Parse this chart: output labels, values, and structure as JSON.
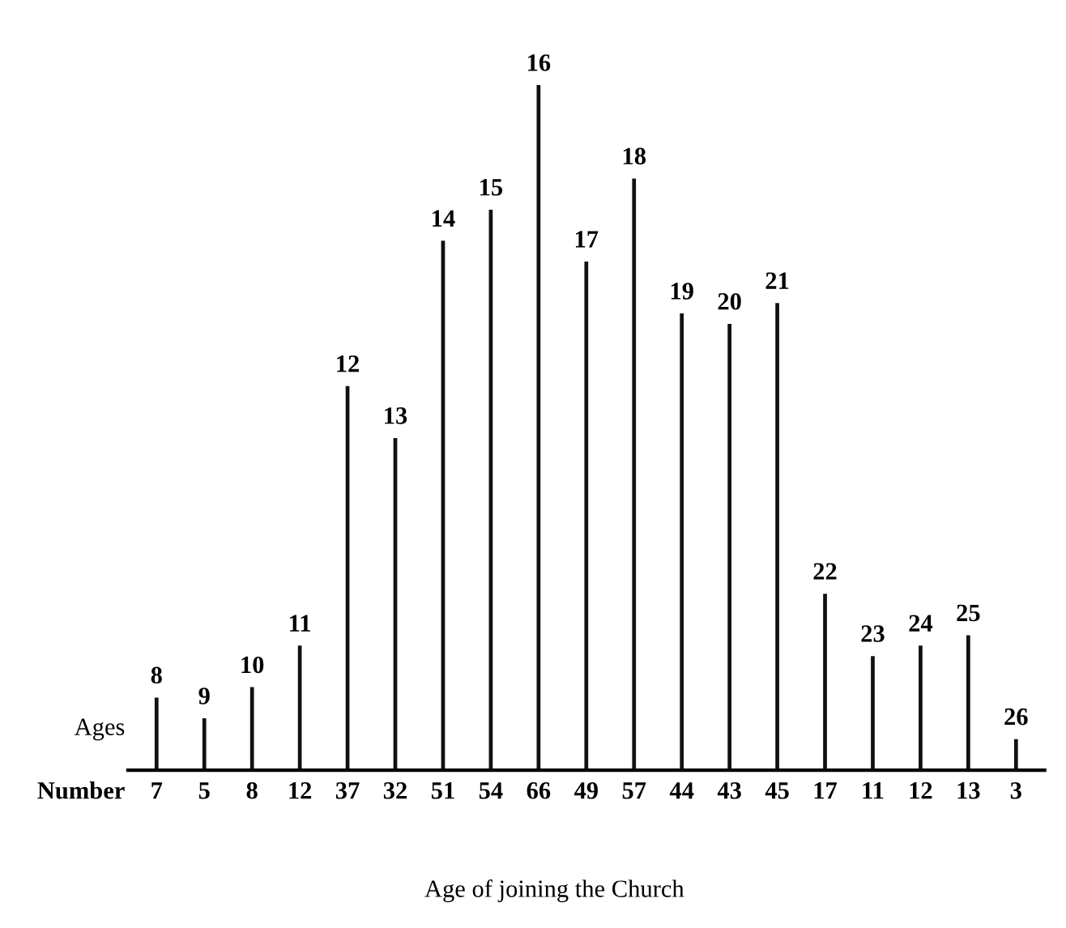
{
  "chart_data": {
    "type": "bar",
    "title": "Age of joining the Church",
    "categories": [
      "8",
      "9",
      "10",
      "11",
      "12",
      "13",
      "14",
      "15",
      "16",
      "17",
      "18",
      "19",
      "20",
      "21",
      "22",
      "23",
      "24",
      "25",
      "26"
    ],
    "values": [
      7,
      5,
      8,
      12,
      37,
      32,
      51,
      54,
      66,
      49,
      57,
      44,
      43,
      45,
      17,
      11,
      12,
      13,
      3
    ],
    "color": "#111111",
    "data_labels": true,
    "annotations": [
      "Ages",
      "Number"
    ]
  }
}
